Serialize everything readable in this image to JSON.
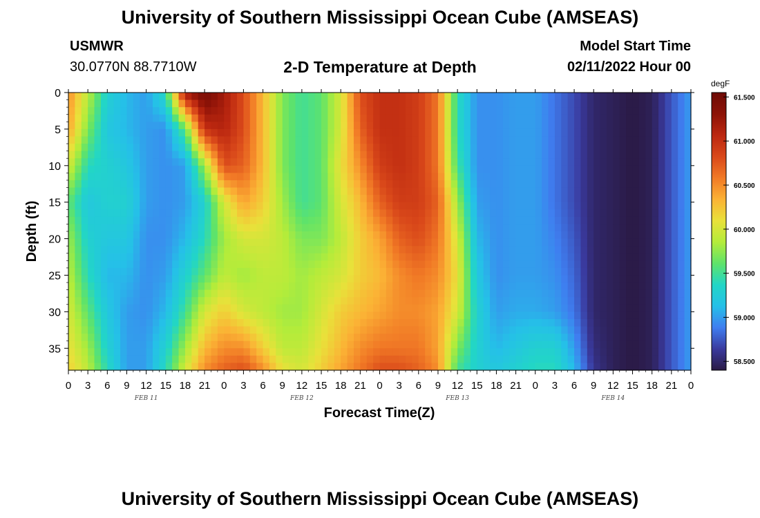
{
  "header": {
    "title": "University of Southern Mississippi Ocean Cube (AMSEAS)",
    "station": "USMWR",
    "coords": "30.0770N  88.7710W",
    "subtitle": "2-D Temperature at Depth",
    "model_start_label": "Model Start Time",
    "model_start_value": "02/11/2022 Hour 00"
  },
  "footer": {
    "title": "University of Southern Mississippi Ocean Cube (AMSEAS)"
  },
  "colors": {
    "palette": [
      "#2a1a45",
      "#3a3a9e",
      "#3f7ef0",
      "#25c0e8",
      "#22d6c6",
      "#5fe36a",
      "#b4ec3a",
      "#e9e13a",
      "#fbb235",
      "#f17a26",
      "#d9481a",
      "#bb2710",
      "#8c1207",
      "#6e0b06"
    ]
  },
  "chart_data": {
    "type": "heatmap",
    "title": "2-D Temperature at Depth",
    "xlabel": "Forecast Time(Z)",
    "ylabel": "Depth (ft)",
    "x_hours": [
      0,
      3,
      6,
      9,
      12,
      15,
      18,
      21,
      24,
      27,
      30,
      33,
      36,
      39,
      42,
      45,
      48,
      51,
      54,
      57,
      60,
      63,
      66,
      69,
      72,
      75,
      78,
      81,
      84,
      87,
      90,
      93,
      96
    ],
    "x_tick_labels": [
      "0",
      "3",
      "6",
      "9",
      "12",
      "15",
      "18",
      "21",
      "0",
      "3",
      "6",
      "9",
      "12",
      "15",
      "18",
      "21",
      "0",
      "3",
      "6",
      "9",
      "12",
      "15",
      "18",
      "21",
      "0",
      "3",
      "6",
      "9",
      "12",
      "15",
      "18",
      "21",
      "0"
    ],
    "date_labels": [
      {
        "text": "FEB 11",
        "hour": 12
      },
      {
        "text": "FEB 12",
        "hour": 36
      },
      {
        "text": "FEB 13",
        "hour": 60
      },
      {
        "text": "FEB 14",
        "hour": 84
      }
    ],
    "y_ticks": [
      0,
      5,
      10,
      15,
      20,
      25,
      30,
      35
    ],
    "y_tick_labels": [
      "0",
      "5",
      "10",
      "15",
      "20",
      "25",
      "30",
      "35"
    ],
    "ylim": [
      0,
      38
    ],
    "xlim": [
      0,
      96
    ],
    "colorbar": {
      "unit": "degF",
      "range": [
        58.4,
        61.55
      ],
      "tick_values": [
        61.5,
        61.0,
        60.5,
        60.0,
        59.5,
        59.0,
        58.5
      ],
      "tick_labels": [
        "61.500",
        "61.000",
        "60.500",
        "60.000",
        "59.500",
        "59.000",
        "58.500"
      ]
    },
    "profile_hours": [
      0,
      3,
      6,
      9,
      12,
      15,
      18,
      21,
      24,
      27,
      30,
      33,
      36,
      39,
      42,
      45,
      48,
      51,
      54,
      57,
      60,
      63,
      66,
      69,
      72,
      75,
      78,
      81,
      84,
      87,
      90,
      93,
      96
    ],
    "profile_depths": [
      0,
      5,
      10,
      15,
      20,
      25,
      30,
      35,
      38
    ],
    "values_degF": [
      [
        60.5,
        60.4,
        60.0,
        59.6,
        59.8,
        59.9,
        60.0,
        60.1,
        60.2
      ],
      [
        59.9,
        59.7,
        59.4,
        59.2,
        59.3,
        59.4,
        59.6,
        59.8,
        59.9
      ],
      [
        59.3,
        59.2,
        59.3,
        59.3,
        59.2,
        59.1,
        59.2,
        59.3,
        59.4
      ],
      [
        59.1,
        59.1,
        59.2,
        59.3,
        59.2,
        59.1,
        59.0,
        59.0,
        59.0
      ],
      [
        59.0,
        59.0,
        59.0,
        59.0,
        58.95,
        58.95,
        58.95,
        59.0,
        59.0
      ],
      [
        59.4,
        58.95,
        58.95,
        58.95,
        58.95,
        59.0,
        59.1,
        59.3,
        59.4
      ],
      [
        61.2,
        59.6,
        59.0,
        59.0,
        59.1,
        59.3,
        59.5,
        59.8,
        60.0
      ],
      [
        61.5,
        61.0,
        59.8,
        59.3,
        59.4,
        59.6,
        60.0,
        60.3,
        60.5
      ],
      [
        61.2,
        61.1,
        60.8,
        60.0,
        59.8,
        59.9,
        60.2,
        60.5,
        60.7
      ],
      [
        60.8,
        60.8,
        60.7,
        60.4,
        60.0,
        59.8,
        60.0,
        60.5,
        60.8
      ],
      [
        60.3,
        60.3,
        60.3,
        60.2,
        60.0,
        59.9,
        59.9,
        60.2,
        60.5
      ],
      [
        59.7,
        59.7,
        59.7,
        59.8,
        59.9,
        59.9,
        59.8,
        59.9,
        60.1
      ],
      [
        59.5,
        59.5,
        59.5,
        59.5,
        59.7,
        59.8,
        59.8,
        59.9,
        60.0
      ],
      [
        59.6,
        59.6,
        59.6,
        59.6,
        59.7,
        59.9,
        60.0,
        60.1,
        60.2
      ],
      [
        60.0,
        60.0,
        60.1,
        60.0,
        59.9,
        60.0,
        60.2,
        60.3,
        60.4
      ],
      [
        60.8,
        60.7,
        60.5,
        60.3,
        60.2,
        60.2,
        60.3,
        60.5,
        60.6
      ],
      [
        61.0,
        61.0,
        60.9,
        60.7,
        60.4,
        60.3,
        60.4,
        60.6,
        60.8
      ],
      [
        61.0,
        61.0,
        61.0,
        60.9,
        60.7,
        60.5,
        60.5,
        60.6,
        60.8
      ],
      [
        60.9,
        60.9,
        60.9,
        60.9,
        60.8,
        60.6,
        60.5,
        60.6,
        60.7
      ],
      [
        60.6,
        60.6,
        60.6,
        60.7,
        60.6,
        60.5,
        60.4,
        60.4,
        60.5
      ],
      [
        59.4,
        59.4,
        59.5,
        59.8,
        60.0,
        60.1,
        60.0,
        59.7,
        59.5
      ],
      [
        58.95,
        58.95,
        58.95,
        59.0,
        59.1,
        59.2,
        59.3,
        59.3,
        59.3
      ],
      [
        58.95,
        58.95,
        58.95,
        58.95,
        58.95,
        58.95,
        59.0,
        59.1,
        59.2
      ],
      [
        59.0,
        59.0,
        59.0,
        59.0,
        59.0,
        59.0,
        59.05,
        59.2,
        59.3
      ],
      [
        59.0,
        59.0,
        59.0,
        59.0,
        59.0,
        59.0,
        59.05,
        59.3,
        59.4
      ],
      [
        58.85,
        58.85,
        58.85,
        58.85,
        58.9,
        58.95,
        59.0,
        59.3,
        59.4
      ],
      [
        58.7,
        58.7,
        58.7,
        58.7,
        58.75,
        58.8,
        58.85,
        59.0,
        59.1
      ],
      [
        58.5,
        58.5,
        58.5,
        58.5,
        58.5,
        58.5,
        58.5,
        58.55,
        58.6
      ],
      [
        58.45,
        58.45,
        58.45,
        58.45,
        58.45,
        58.45,
        58.45,
        58.45,
        58.45
      ],
      [
        58.4,
        58.4,
        58.4,
        58.4,
        58.4,
        58.4,
        58.4,
        58.4,
        58.4
      ],
      [
        58.45,
        58.45,
        58.45,
        58.45,
        58.45,
        58.45,
        58.45,
        58.45,
        58.45
      ],
      [
        58.75,
        58.75,
        58.75,
        58.75,
        58.75,
        58.75,
        58.75,
        58.75,
        58.75
      ],
      [
        59.0,
        59.0,
        59.0,
        59.0,
        59.0,
        59.0,
        59.0,
        59.0,
        59.0
      ]
    ]
  }
}
